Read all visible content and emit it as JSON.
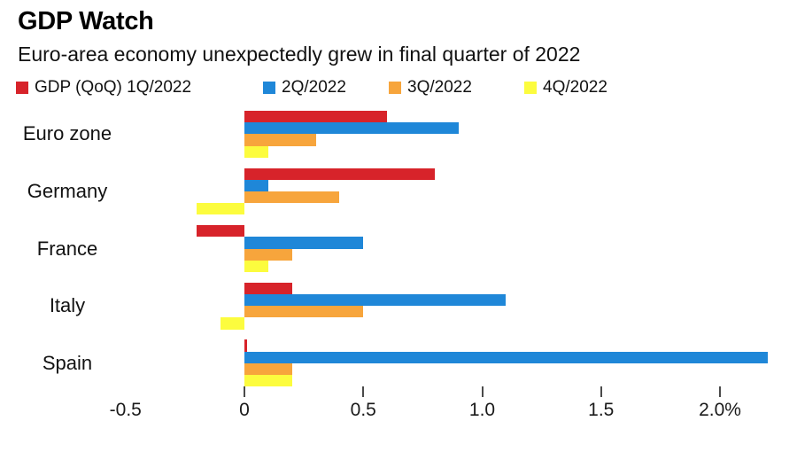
{
  "header": {
    "title": "GDP Watch",
    "subtitle": "Euro-area economy unexpectedly grew in final quarter of 2022"
  },
  "chart_data": {
    "type": "bar",
    "orientation": "horizontal",
    "title": "GDP Watch",
    "subtitle": "Euro-area economy unexpectedly grew in final quarter of 2022",
    "unit": "%",
    "grid": false,
    "legend_position": "top",
    "categories": [
      "Euro zone",
      "Germany",
      "France",
      "Italy",
      "Spain"
    ],
    "series": [
      {
        "name": "GDP (QoQ) 1Q/2022",
        "color": "#d7232a",
        "values": [
          0.6,
          0.8,
          -0.2,
          0.2,
          0.0
        ]
      },
      {
        "name": "2Q/2022",
        "color": "#1f87d8",
        "values": [
          0.9,
          0.1,
          0.5,
          1.1,
          2.2
        ]
      },
      {
        "name": "3Q/2022",
        "color": "#f7a53c",
        "values": [
          0.3,
          0.4,
          0.2,
          0.5,
          0.2
        ]
      },
      {
        "name": "4Q/2022",
        "color": "#fcfc3e",
        "values": [
          0.1,
          -0.2,
          0.1,
          -0.1,
          0.2
        ]
      }
    ],
    "xlim": [
      -0.5,
      2.25
    ],
    "xticks": [
      0,
      0.5,
      1.0,
      1.5,
      2.0
    ],
    "xtick_labels": [
      {
        "text": "-0.5",
        "value": -0.5
      },
      {
        "text": "0",
        "value": 0
      },
      {
        "text": "0.5",
        "value": 0.5
      },
      {
        "text": "1.0",
        "value": 1.0
      },
      {
        "text": "1.5",
        "value": 1.5
      },
      {
        "text": "2.0%",
        "value": 2.0
      }
    ]
  }
}
